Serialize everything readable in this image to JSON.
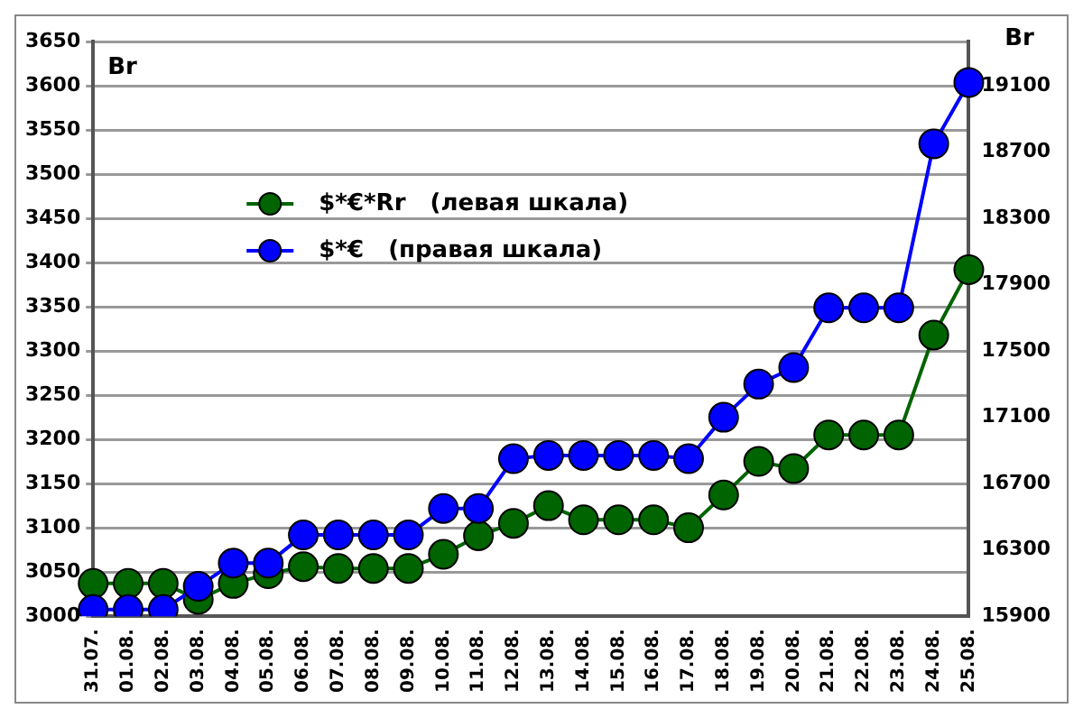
{
  "chart_data": {
    "type": "line",
    "ylabel": "Br",
    "y2label": "Br",
    "categories": [
      "31.07.",
      "01.08.",
      "02.08.",
      "03.08.",
      "04.08.",
      "05.08.",
      "06.08.",
      "07.08.",
      "08.08.",
      "09.08.",
      "10.08.",
      "11.08.",
      "12.08.",
      "13.08.",
      "14.08.",
      "15.08.",
      "16.08.",
      "17.08.",
      "18.08.",
      "19.08.",
      "20.08.",
      "21.08.",
      "22.08.",
      "23.08.",
      "24.08.",
      "25.08."
    ],
    "series": [
      {
        "name": "$*€*Rr   (левая шкала)",
        "color": "#006400",
        "values": [
          3037,
          3037,
          3037,
          3019,
          3037,
          3048,
          3056,
          3054,
          3054,
          3054,
          3070,
          3091,
          3105,
          3125,
          3109,
          3109,
          3109,
          3100,
          3137,
          3175,
          3167,
          3205,
          3205,
          3205,
          3318,
          3392
        ]
      },
      {
        "name": "$*€   (правая шкала)",
        "color": "#0000ff",
        "axis": "y2",
        "values": [
          15940,
          15940,
          15940,
          16080,
          16220,
          16220,
          16390,
          16390,
          16390,
          16390,
          16550,
          16550,
          16850,
          16870,
          16870,
          16870,
          16870,
          16850,
          17100,
          17300,
          17400,
          17760,
          17760,
          17760,
          18750,
          19120
        ]
      }
    ],
    "ylim": [
      3000,
      3650
    ],
    "yticks": [
      3000,
      3050,
      3100,
      3150,
      3200,
      3250,
      3300,
      3350,
      3400,
      3450,
      3500,
      3550,
      3600,
      3650
    ],
    "y2lim": [
      15900,
      19367
    ],
    "y2ticks": [
      15900,
      16300,
      16700,
      17100,
      17500,
      17900,
      18300,
      18700,
      19100
    ],
    "grid": "y",
    "legend": "top left",
    "marker": "circle",
    "line_style": "solid"
  }
}
